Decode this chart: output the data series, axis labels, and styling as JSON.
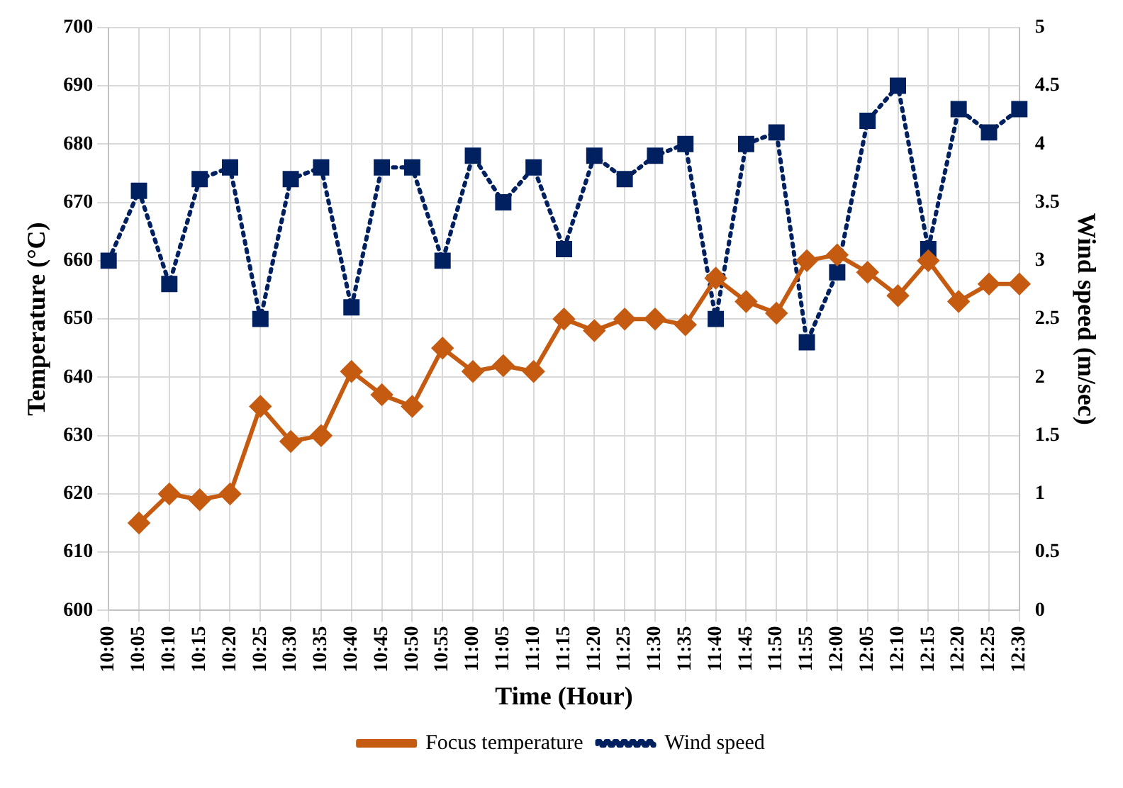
{
  "chart_data": {
    "type": "line",
    "xlabel": "Time (Hour)",
    "ylabel": "Temperature (°C)",
    "y2label": "Wind speed (m/sec)",
    "categories": [
      "10:00",
      "10:05",
      "10:10",
      "10:15",
      "10:20",
      "10:25",
      "10:30",
      "10:35",
      "10:40",
      "10:45",
      "10:50",
      "10:55",
      "11:00",
      "11:05",
      "11:10",
      "11:15",
      "11:20",
      "11:25",
      "11:30",
      "11:35",
      "11:40",
      "11:45",
      "11:50",
      "11:55",
      "12:00",
      "12:05",
      "12:10",
      "12:15",
      "12:20",
      "12:25",
      "12:30"
    ],
    "series": [
      {
        "name": "Focus temperature",
        "color": "#c55a11",
        "marker": "diamond",
        "line_style": "solid",
        "values": [
          null,
          615,
          620,
          619,
          620,
          635,
          629,
          630,
          641,
          637,
          635,
          645,
          641,
          642,
          641,
          650,
          648,
          650,
          650,
          649,
          657,
          653,
          651,
          660,
          661,
          658,
          654,
          660,
          653,
          656,
          656
        ]
      },
      {
        "name": "Wind speed",
        "color": "#002060",
        "marker": "square",
        "line_style": "dotted",
        "axis": "y2",
        "values": [
          3.0,
          3.6,
          2.8,
          3.7,
          3.8,
          2.5,
          3.7,
          3.8,
          2.6,
          3.8,
          3.8,
          3.0,
          3.9,
          3.5,
          3.8,
          3.1,
          3.9,
          3.7,
          3.9,
          4.0,
          2.5,
          4.0,
          4.1,
          2.3,
          2.9,
          4.2,
          4.5,
          3.1,
          4.3,
          4.1,
          4.3
        ]
      }
    ],
    "ylim": [
      600,
      700
    ],
    "yticks": [
      600,
      610,
      620,
      630,
      640,
      650,
      660,
      670,
      680,
      690,
      700
    ],
    "y2lim": [
      0,
      5
    ],
    "y2ticks": [
      0,
      0.5,
      1,
      1.5,
      2,
      2.5,
      3,
      3.5,
      4,
      4.5,
      5
    ],
    "grid": true,
    "legend": "bottom"
  }
}
